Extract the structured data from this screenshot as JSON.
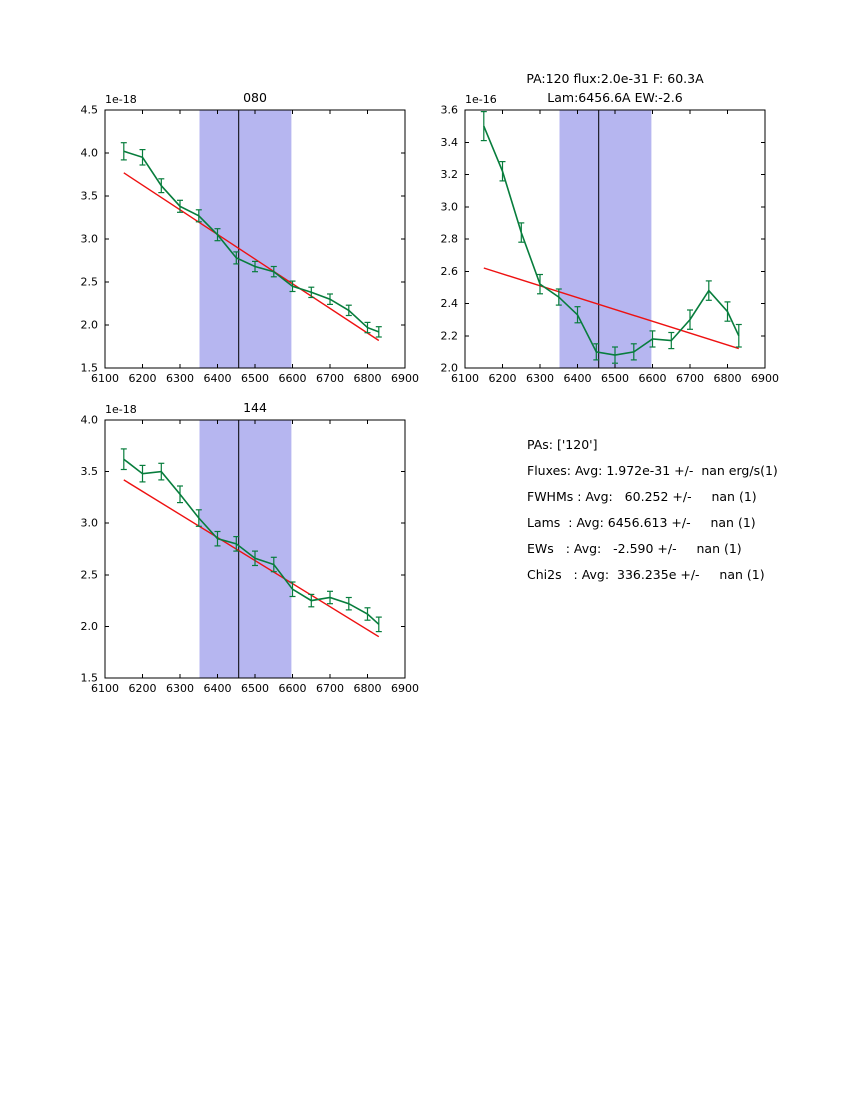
{
  "colors": {
    "data_line": "#077d3c",
    "error_bar": "#077d3c",
    "fit_line": "#ee1111",
    "band_fill": "#b6b6f0",
    "vline": "#000000",
    "axis": "#000000",
    "background": "#ffffff"
  },
  "summary": {
    "lines": [
      "PAs: ['120']",
      "Fluxes: Avg: 1.972e-31 +/-  nan erg/s(1)",
      "FWHMs : Avg:   60.252 +/-     nan (1)",
      "Lams  : Avg: 6456.613 +/-     nan (1)",
      "EWs   : Avg:   -2.590 +/-     nan (1)",
      "Chi2s   : Avg:  336.235e +/-     nan (1)"
    ]
  },
  "chart_data": [
    {
      "type": "line",
      "title_lines": [
        "080"
      ],
      "offset_label": "1e-18",
      "xlabel": "",
      "ylabel": "",
      "grid": false,
      "legend": "none",
      "xlim": [
        6100,
        6900
      ],
      "ylim": [
        1.5,
        4.5
      ],
      "xticks": [
        6100,
        6200,
        6300,
        6400,
        6500,
        6600,
        6700,
        6800,
        6900
      ],
      "xtick_labels": [
        "6100",
        "6200",
        "6300",
        "6400",
        "6500",
        "6600",
        "6700",
        "6800",
        "6900"
      ],
      "yticks": [
        1.5,
        2.0,
        2.5,
        3.0,
        3.5,
        4.0,
        4.5
      ],
      "ytick_labels": [
        "1.5",
        "2.0",
        "2.5",
        "3.0",
        "3.5",
        "4.0",
        "4.5"
      ],
      "band": [
        6352,
        6597
      ],
      "vline": 6456.6,
      "x": [
        6150,
        6200,
        6250,
        6300,
        6350,
        6400,
        6450,
        6500,
        6550,
        6600,
        6650,
        6700,
        6750,
        6800,
        6830
      ],
      "y": [
        4.02,
        3.95,
        3.62,
        3.38,
        3.27,
        3.05,
        2.78,
        2.68,
        2.62,
        2.45,
        2.38,
        2.3,
        2.17,
        1.97,
        1.92
      ],
      "yerr": [
        0.1,
        0.09,
        0.08,
        0.07,
        0.07,
        0.07,
        0.07,
        0.06,
        0.06,
        0.06,
        0.06,
        0.06,
        0.06,
        0.06,
        0.06
      ],
      "fit": {
        "x": [
          6150,
          6830
        ],
        "y": [
          3.77,
          1.82
        ]
      }
    },
    {
      "type": "line",
      "title_lines": [
        "PA:120 flux:2.0e-31 F: 60.3A",
        "Lam:6456.6A EW:-2.6"
      ],
      "offset_label": "1e-16",
      "xlabel": "",
      "ylabel": "",
      "grid": false,
      "legend": "none",
      "xlim": [
        6100,
        6900
      ],
      "ylim": [
        2.0,
        3.6
      ],
      "xticks": [
        6100,
        6200,
        6300,
        6400,
        6500,
        6600,
        6700,
        6800,
        6900
      ],
      "xtick_labels": [
        "6100",
        "6200",
        "6300",
        "6400",
        "6500",
        "6600",
        "6700",
        "6800",
        "6900"
      ],
      "yticks": [
        2.0,
        2.2,
        2.4,
        2.6,
        2.8,
        3.0,
        3.2,
        3.4,
        3.6
      ],
      "ytick_labels": [
        "2.0",
        "2.2",
        "2.4",
        "2.6",
        "2.8",
        "3.0",
        "3.2",
        "3.4",
        "3.6"
      ],
      "band": [
        6352,
        6597
      ],
      "vline": 6456.6,
      "x": [
        6150,
        6200,
        6250,
        6300,
        6350,
        6400,
        6450,
        6500,
        6550,
        6600,
        6650,
        6700,
        6750,
        6800,
        6830
      ],
      "y": [
        3.5,
        3.22,
        2.84,
        2.52,
        2.44,
        2.33,
        2.1,
        2.08,
        2.1,
        2.18,
        2.17,
        2.3,
        2.48,
        2.35,
        2.2
      ],
      "yerr": [
        0.09,
        0.06,
        0.06,
        0.06,
        0.05,
        0.05,
        0.05,
        0.05,
        0.05,
        0.05,
        0.05,
        0.06,
        0.06,
        0.06,
        0.07
      ],
      "fit": {
        "x": [
          6150,
          6830
        ],
        "y": [
          2.62,
          2.12
        ]
      }
    },
    {
      "type": "line",
      "title_lines": [
        "144"
      ],
      "offset_label": "1e-18",
      "xlabel": "",
      "ylabel": "",
      "grid": false,
      "legend": "none",
      "xlim": [
        6100,
        6900
      ],
      "ylim": [
        1.5,
        4.0
      ],
      "xticks": [
        6100,
        6200,
        6300,
        6400,
        6500,
        6600,
        6700,
        6800,
        6900
      ],
      "xtick_labels": [
        "6100",
        "6200",
        "6300",
        "6400",
        "6500",
        "6600",
        "6700",
        "6800",
        "6900"
      ],
      "yticks": [
        1.5,
        2.0,
        2.5,
        3.0,
        3.5,
        4.0
      ],
      "ytick_labels": [
        "1.5",
        "2.0",
        "2.5",
        "3.0",
        "3.5",
        "4.0"
      ],
      "band": [
        6352,
        6597
      ],
      "vline": 6456.6,
      "x": [
        6150,
        6200,
        6250,
        6300,
        6350,
        6400,
        6450,
        6500,
        6550,
        6600,
        6650,
        6700,
        6750,
        6800,
        6830
      ],
      "y": [
        3.62,
        3.48,
        3.5,
        3.28,
        3.05,
        2.85,
        2.8,
        2.66,
        2.6,
        2.36,
        2.25,
        2.28,
        2.22,
        2.12,
        2.02
      ],
      "yerr": [
        0.1,
        0.08,
        0.08,
        0.08,
        0.08,
        0.07,
        0.07,
        0.07,
        0.07,
        0.07,
        0.06,
        0.06,
        0.06,
        0.06,
        0.07
      ],
      "fit": {
        "x": [
          6150,
          6830
        ],
        "y": [
          3.42,
          1.9
        ]
      }
    }
  ]
}
